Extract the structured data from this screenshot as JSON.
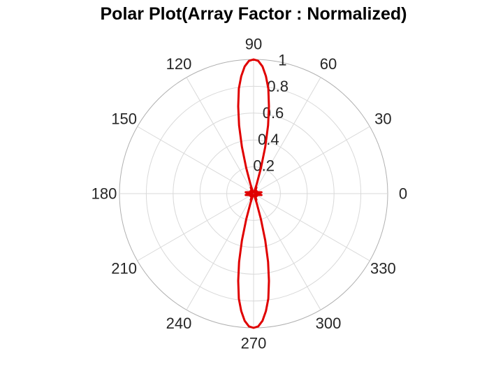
{
  "chart_data": {
    "type": "polar",
    "title": "Polar Plot(Array Factor : Normalized)",
    "theta_ticks": [
      "0",
      "30",
      "60",
      "90",
      "120",
      "150",
      "180",
      "210",
      "240",
      "270",
      "300",
      "330"
    ],
    "theta_tick_values": [
      0,
      30,
      60,
      90,
      120,
      150,
      180,
      210,
      240,
      270,
      300,
      330
    ],
    "r_ticks": [
      "0.2",
      "0.4",
      "0.6",
      "0.8",
      "1"
    ],
    "r_tick_values": [
      0.2,
      0.4,
      0.6,
      0.8,
      1.0
    ],
    "rlim": [
      0,
      1
    ],
    "grid": true,
    "series": [
      {
        "color": "#e00000",
        "points": [
          [
            0,
            0.02
          ],
          [
            5,
            0.04
          ],
          [
            10,
            0.06
          ],
          [
            15,
            0.04
          ],
          [
            20,
            0.01
          ],
          [
            25,
            0.02
          ],
          [
            30,
            0.03
          ],
          [
            35,
            0.01
          ],
          [
            40,
            0.02
          ],
          [
            45,
            0.03
          ],
          [
            50,
            0.02
          ],
          [
            55,
            0.01
          ],
          [
            60,
            0.03
          ],
          [
            65,
            0.05
          ],
          [
            68,
            0.03
          ],
          [
            70,
            0.02
          ],
          [
            72,
            0.08
          ],
          [
            74,
            0.2
          ],
          [
            76,
            0.36
          ],
          [
            78,
            0.52
          ],
          [
            80,
            0.66
          ],
          [
            82,
            0.79
          ],
          [
            84,
            0.88
          ],
          [
            86,
            0.95
          ],
          [
            88,
            0.99
          ],
          [
            90,
            1.0
          ],
          [
            92,
            0.99
          ],
          [
            94,
            0.95
          ],
          [
            96,
            0.88
          ],
          [
            98,
            0.79
          ],
          [
            100,
            0.66
          ],
          [
            102,
            0.52
          ],
          [
            104,
            0.36
          ],
          [
            106,
            0.2
          ],
          [
            108,
            0.08
          ],
          [
            110,
            0.02
          ],
          [
            112,
            0.03
          ],
          [
            115,
            0.05
          ],
          [
            120,
            0.03
          ],
          [
            125,
            0.01
          ],
          [
            130,
            0.02
          ],
          [
            135,
            0.03
          ],
          [
            140,
            0.02
          ],
          [
            145,
            0.01
          ],
          [
            150,
            0.03
          ],
          [
            155,
            0.02
          ],
          [
            160,
            0.01
          ],
          [
            165,
            0.04
          ],
          [
            170,
            0.06
          ],
          [
            175,
            0.04
          ],
          [
            180,
            0.02
          ],
          [
            185,
            0.04
          ],
          [
            190,
            0.06
          ],
          [
            195,
            0.04
          ],
          [
            200,
            0.01
          ],
          [
            205,
            0.02
          ],
          [
            210,
            0.03
          ],
          [
            215,
            0.01
          ],
          [
            220,
            0.02
          ],
          [
            225,
            0.03
          ],
          [
            230,
            0.02
          ],
          [
            235,
            0.01
          ],
          [
            240,
            0.03
          ],
          [
            245,
            0.05
          ],
          [
            248,
            0.03
          ],
          [
            250,
            0.02
          ],
          [
            252,
            0.08
          ],
          [
            254,
            0.2
          ],
          [
            256,
            0.36
          ],
          [
            258,
            0.52
          ],
          [
            260,
            0.66
          ],
          [
            262,
            0.79
          ],
          [
            264,
            0.88
          ],
          [
            266,
            0.95
          ],
          [
            268,
            0.99
          ],
          [
            270,
            1.0
          ],
          [
            272,
            0.99
          ],
          [
            274,
            0.95
          ],
          [
            276,
            0.88
          ],
          [
            278,
            0.79
          ],
          [
            280,
            0.66
          ],
          [
            282,
            0.52
          ],
          [
            284,
            0.36
          ],
          [
            286,
            0.2
          ],
          [
            288,
            0.08
          ],
          [
            290,
            0.02
          ],
          [
            292,
            0.03
          ],
          [
            295,
            0.05
          ],
          [
            300,
            0.03
          ],
          [
            305,
            0.01
          ],
          [
            310,
            0.02
          ],
          [
            315,
            0.03
          ],
          [
            320,
            0.02
          ],
          [
            325,
            0.01
          ],
          [
            330,
            0.03
          ],
          [
            335,
            0.02
          ],
          [
            340,
            0.01
          ],
          [
            345,
            0.04
          ],
          [
            350,
            0.06
          ],
          [
            355,
            0.04
          ],
          [
            360,
            0.02
          ]
        ]
      }
    ]
  }
}
